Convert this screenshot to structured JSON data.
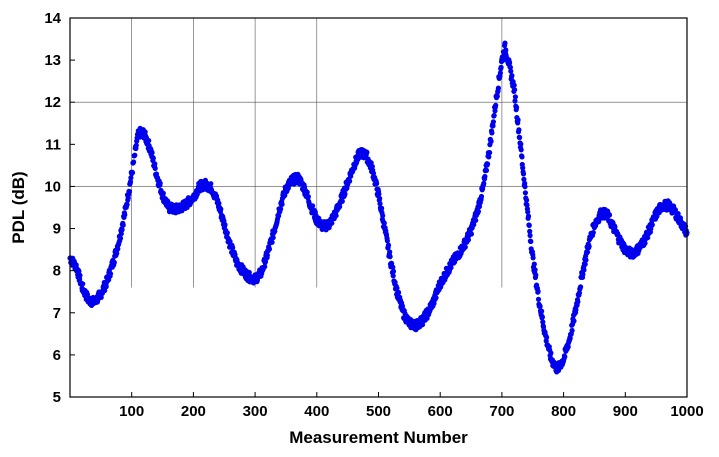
{
  "chart_data": {
    "type": "scatter",
    "title": "",
    "xlabel": "Measurement Number",
    "ylabel": "PDL (dB)",
    "xlim": [
      0,
      1000
    ],
    "ylim": [
      5,
      14
    ],
    "xticks": [
      "100",
      "200",
      "300",
      "400",
      "500",
      "600",
      "700",
      "800",
      "900",
      "1000"
    ],
    "yticks": [
      "5",
      "6",
      "7",
      "8",
      "9",
      "10",
      "11",
      "12",
      "13",
      "14"
    ],
    "grid": {
      "vertical_lines_at_x": [
        100,
        200,
        300,
        400,
        700
      ],
      "vertical_lines_from_y": 7.6,
      "horizontal_lines_at_y": [
        10,
        12
      ],
      "horizontal_lines_from_x": 0
    },
    "marker_color": "#0000ee",
    "points": [
      [
        0,
        8.3
      ],
      [
        10,
        8.1
      ],
      [
        20,
        7.6
      ],
      [
        30,
        7.3
      ],
      [
        40,
        7.25
      ],
      [
        50,
        7.45
      ],
      [
        60,
        7.75
      ],
      [
        70,
        8.2
      ],
      [
        80,
        8.75
      ],
      [
        90,
        9.45
      ],
      [
        100,
        10.3
      ],
      [
        110,
        11.2
      ],
      [
        115,
        11.3
      ],
      [
        120,
        11.25
      ],
      [
        130,
        10.9
      ],
      [
        140,
        10.3
      ],
      [
        150,
        9.8
      ],
      [
        160,
        9.5
      ],
      [
        170,
        9.45
      ],
      [
        180,
        9.5
      ],
      [
        190,
        9.6
      ],
      [
        200,
        9.75
      ],
      [
        210,
        10.0
      ],
      [
        220,
        10.05
      ],
      [
        230,
        9.95
      ],
      [
        240,
        9.6
      ],
      [
        250,
        9.1
      ],
      [
        260,
        8.6
      ],
      [
        270,
        8.2
      ],
      [
        280,
        8.0
      ],
      [
        290,
        7.85
      ],
      [
        300,
        7.8
      ],
      [
        310,
        7.95
      ],
      [
        320,
        8.4
      ],
      [
        330,
        8.9
      ],
      [
        340,
        9.5
      ],
      [
        350,
        9.95
      ],
      [
        360,
        10.15
      ],
      [
        370,
        10.2
      ],
      [
        380,
        9.95
      ],
      [
        390,
        9.55
      ],
      [
        400,
        9.2
      ],
      [
        410,
        9.05
      ],
      [
        420,
        9.1
      ],
      [
        430,
        9.35
      ],
      [
        440,
        9.7
      ],
      [
        450,
        10.1
      ],
      [
        460,
        10.5
      ],
      [
        470,
        10.8
      ],
      [
        480,
        10.75
      ],
      [
        490,
        10.4
      ],
      [
        500,
        9.8
      ],
      [
        510,
        9.0
      ],
      [
        520,
        8.2
      ],
      [
        530,
        7.5
      ],
      [
        540,
        7.0
      ],
      [
        550,
        6.75
      ],
      [
        560,
        6.7
      ],
      [
        570,
        6.8
      ],
      [
        580,
        7.0
      ],
      [
        590,
        7.3
      ],
      [
        600,
        7.7
      ],
      [
        610,
        7.95
      ],
      [
        620,
        8.2
      ],
      [
        630,
        8.4
      ],
      [
        640,
        8.65
      ],
      [
        650,
        8.95
      ],
      [
        660,
        9.4
      ],
      [
        670,
        10.0
      ],
      [
        680,
        10.9
      ],
      [
        690,
        12.0
      ],
      [
        700,
        13.0
      ],
      [
        705,
        13.3
      ],
      [
        710,
        13.0
      ],
      [
        720,
        12.3
      ],
      [
        730,
        11.0
      ],
      [
        740,
        9.6
      ],
      [
        750,
        8.3
      ],
      [
        760,
        7.3
      ],
      [
        770,
        6.5
      ],
      [
        780,
        5.9
      ],
      [
        790,
        5.65
      ],
      [
        800,
        5.9
      ],
      [
        810,
        6.4
      ],
      [
        820,
        7.1
      ],
      [
        830,
        7.9
      ],
      [
        840,
        8.6
      ],
      [
        850,
        9.1
      ],
      [
        860,
        9.35
      ],
      [
        870,
        9.35
      ],
      [
        880,
        9.05
      ],
      [
        890,
        8.75
      ],
      [
        900,
        8.5
      ],
      [
        910,
        8.4
      ],
      [
        920,
        8.5
      ],
      [
        930,
        8.7
      ],
      [
        940,
        9.0
      ],
      [
        950,
        9.35
      ],
      [
        960,
        9.55
      ],
      [
        970,
        9.55
      ],
      [
        980,
        9.4
      ],
      [
        990,
        9.15
      ],
      [
        1000,
        8.9
      ]
    ]
  }
}
